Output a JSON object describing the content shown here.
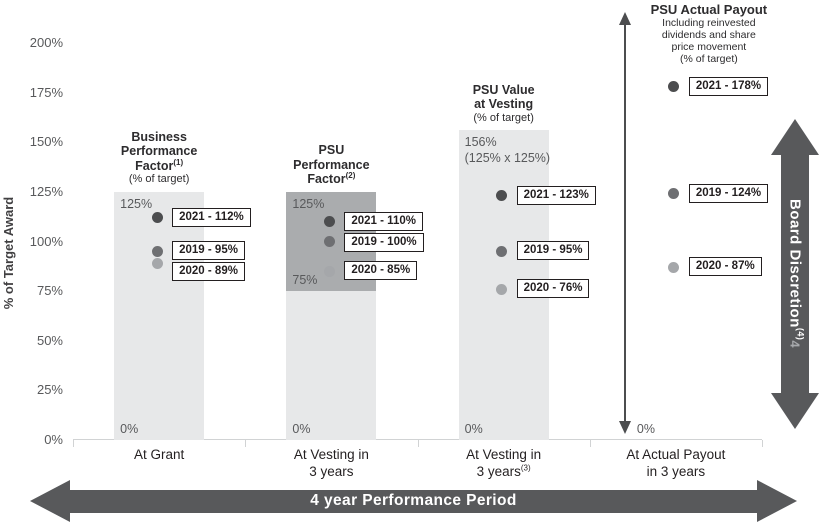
{
  "chart_data": {
    "type": "scatter",
    "title": "",
    "ylabel": "% of Target Award",
    "ylim": [
      0,
      200
    ],
    "grid": false,
    "y_ticks": [
      {
        "v": 200,
        "label": "200%"
      },
      {
        "v": 175,
        "label": "175%"
      },
      {
        "v": 150,
        "label": "150%"
      },
      {
        "v": 125,
        "label": "125%"
      },
      {
        "v": 100,
        "label": "100%"
      },
      {
        "v": 75,
        "label": "75%"
      },
      {
        "v": 50,
        "label": "50%"
      },
      {
        "v": 25,
        "label": "25%"
      },
      {
        "v": 0,
        "label": "0%"
      }
    ],
    "series_colors": {
      "2021": "#4c4d4f",
      "2019": "#6e6f72",
      "2020": "#a5a7aa"
    },
    "colors": {
      "bar_light": "#e7e8e9",
      "bar_dark": "#aaacae",
      "arrow_gray": "#58595b",
      "axis_line": "#d1d3d4",
      "bar_label_text": "#58595b"
    },
    "columns": [
      {
        "category_lines": [
          {
            "t": "At Grant"
          }
        ],
        "header_lines": [
          {
            "t": "Business"
          },
          {
            "t": "Performance"
          },
          {
            "t": "Factor",
            "sup": "(1)"
          }
        ],
        "header_sub_lines": [
          "(% of target)"
        ],
        "bar_segments": [
          {
            "from": 0,
            "to": 125,
            "shade": "light"
          }
        ],
        "bar_labels": [
          {
            "lines": [
              "125%"
            ],
            "v": 125,
            "place": "below"
          },
          {
            "lines": [
              "0%"
            ],
            "v": 0,
            "place": "above"
          }
        ],
        "points": [
          {
            "year": "2021",
            "value": 112,
            "label": "2021 - 112%"
          },
          {
            "year": "2019",
            "value": 95,
            "label": "2019 - 95%"
          },
          {
            "year": "2020",
            "value": 89,
            "label": "2020 - 89%"
          }
        ]
      },
      {
        "category_lines": [
          {
            "t": "At Vesting in"
          },
          {
            "t": "3 years"
          }
        ],
        "header_lines": [
          {
            "t": "PSU"
          },
          {
            "t": "Performance"
          },
          {
            "t": "Factor",
            "sup": "(2)"
          }
        ],
        "header_sub_lines": [],
        "bar_segments": [
          {
            "from": 0,
            "to": 75,
            "shade": "light"
          },
          {
            "from": 75,
            "to": 125,
            "shade": "dark"
          }
        ],
        "bar_labels": [
          {
            "lines": [
              "125%"
            ],
            "v": 125,
            "place": "below"
          },
          {
            "lines": [
              "75%"
            ],
            "v": 75,
            "place": "above"
          },
          {
            "lines": [
              "0%"
            ],
            "v": 0,
            "place": "above"
          }
        ],
        "points": [
          {
            "year": "2021",
            "value": 110,
            "label": "2021 - 110%"
          },
          {
            "year": "2019",
            "value": 100,
            "label": "2019 - 100%"
          },
          {
            "year": "2020",
            "value": 85,
            "label": "2020 - 85%"
          }
        ]
      },
      {
        "category_lines": [
          {
            "t": "At Vesting in"
          },
          {
            "t": "3 years",
            "sup": "(3)"
          }
        ],
        "header_lines": [
          {
            "t": "PSU Value"
          },
          {
            "t": "at Vesting"
          }
        ],
        "header_sub_lines": [
          "(% of target)"
        ],
        "bar_segments": [
          {
            "from": 0,
            "to": 156,
            "shade": "light"
          }
        ],
        "bar_labels": [
          {
            "lines": [
              "156%",
              "(125% x 125%)"
            ],
            "v": 156,
            "place": "below"
          },
          {
            "lines": [
              "0%"
            ],
            "v": 0,
            "place": "above"
          }
        ],
        "points": [
          {
            "year": "2021",
            "value": 123,
            "label": "2021 - 123%"
          },
          {
            "year": "2019",
            "value": 95,
            "label": "2019 - 95%"
          },
          {
            "year": "2020",
            "value": 76,
            "label": "2020 - 76%"
          }
        ]
      },
      {
        "category_lines": [
          {
            "t": "At Actual Payout"
          },
          {
            "t": "in 3 years"
          }
        ],
        "header_lines": [
          {
            "t": "PSU Actual Payout"
          }
        ],
        "header_sub_lines": [
          "Including reinvested",
          "dividends and share",
          "price movement",
          "(% of target)"
        ],
        "bar_segments": [],
        "bar_labels": [
          {
            "lines": [
              "0%"
            ],
            "v": 0,
            "place": "above"
          }
        ],
        "value_arrow": true,
        "points": [
          {
            "year": "2021",
            "value": 178,
            "label": "2021 - 178%"
          },
          {
            "year": "2019",
            "value": 124,
            "label": "2019 - 124%"
          },
          {
            "year": "2020",
            "value": 87,
            "label": "2020 - 87%"
          }
        ]
      }
    ]
  },
  "annotations": {
    "board_discretion": {
      "label": "Board Discretion",
      "sup": "(4)",
      "ghost": "4"
    },
    "performance_period": "4 year Performance Period"
  }
}
